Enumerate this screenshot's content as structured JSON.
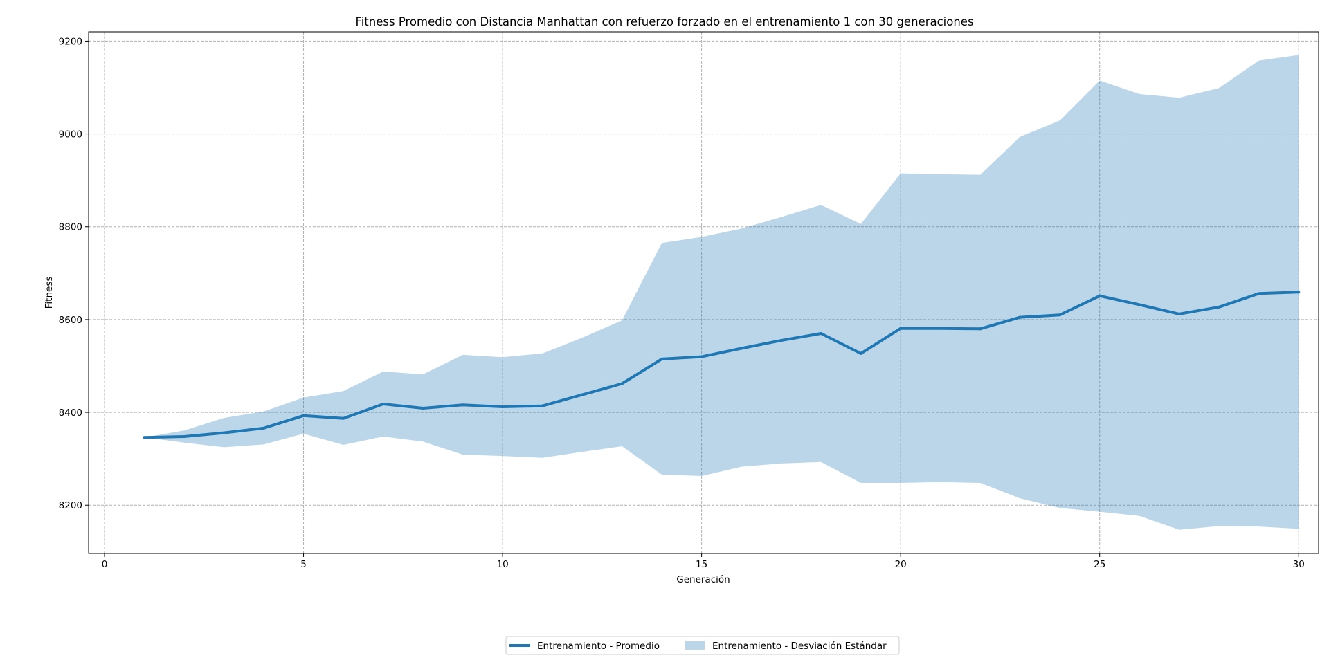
{
  "chart_data": {
    "type": "line",
    "title": "Fitness Promedio con Distancia Manhattan con refuerzo forzado en el entrenamiento 1 con 30 generaciones",
    "xlabel": "Generación",
    "ylabel": "Fitness",
    "xlim": [
      -0.4,
      30.5
    ],
    "ylim": [
      8096,
      9220
    ],
    "xticks": [
      0,
      5,
      10,
      15,
      20,
      25,
      30
    ],
    "yticks": [
      8200,
      8400,
      8600,
      8800,
      9000,
      9200
    ],
    "grid": true,
    "legend_position": "bottom-center",
    "colors": {
      "line": "#1f77b4",
      "band": "#1f77b4",
      "grid": "#b0b0b0"
    },
    "x": [
      1,
      2,
      3,
      4,
      5,
      6,
      7,
      8,
      9,
      10,
      11,
      12,
      13,
      14,
      15,
      16,
      17,
      18,
      19,
      20,
      21,
      22,
      23,
      24,
      25,
      26,
      27,
      28,
      29,
      30
    ],
    "series": [
      {
        "name": "Entrenamiento  - Promedio",
        "kind": "line",
        "values": [
          8346,
          8348,
          8356,
          8366,
          8393,
          8387,
          8418,
          8409,
          8416,
          8412,
          8414,
          8438,
          8462,
          8515,
          8520,
          8538,
          8555,
          8570,
          8527,
          8581,
          8581,
          8580,
          8605,
          8610,
          8651,
          8632,
          8612,
          8627,
          8656,
          8659
        ]
      },
      {
        "name": "Entrenamiento  - Desviación Estándar",
        "kind": "band",
        "upper": [
          8346,
          8361,
          8388,
          8402,
          8432,
          8446,
          8488,
          8482,
          8524,
          8519,
          8527,
          8561,
          8598,
          8765,
          8778,
          8796,
          8821,
          8847,
          8806,
          8915,
          8913,
          8912,
          8994,
          9029,
          9115,
          9086,
          9078,
          9099,
          9158,
          9170
        ],
        "lower": [
          8346,
          8335,
          8325,
          8331,
          8354,
          8330,
          8348,
          8337,
          8309,
          8306,
          8302,
          8315,
          8327,
          8266,
          8263,
          8283,
          8290,
          8293,
          8248,
          8248,
          8250,
          8248,
          8215,
          8194,
          8186,
          8177,
          8147,
          8155,
          8154,
          8149
        ]
      }
    ]
  }
}
